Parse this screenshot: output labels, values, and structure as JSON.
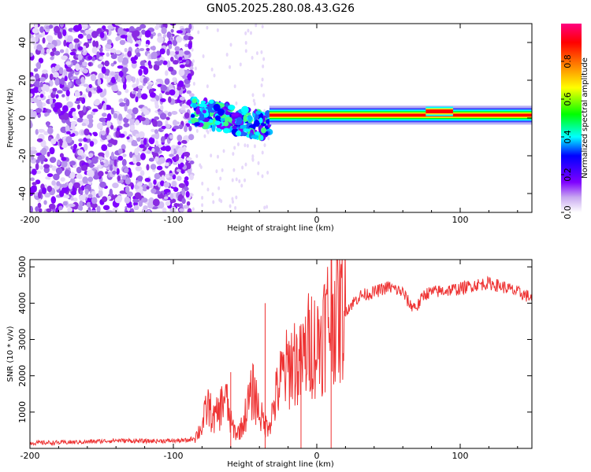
{
  "title": "GN05.2025.280.08.43.G26",
  "colors": {
    "snr_line": "#ee3333",
    "axis": "#000000",
    "background": "#ffffff"
  },
  "chart_data": [
    {
      "type": "heatmap",
      "name": "spectrogram",
      "xlabel": "Height of straight line (km)",
      "ylabel": "Frequency (Hz)",
      "xlim": [
        -200,
        150
      ],
      "ylim": [
        -50,
        50
      ],
      "xticks": [
        -200,
        -100,
        0,
        100
      ],
      "xtick_labels": [
        "-200",
        "-100",
        "0",
        "100"
      ],
      "yticks": [
        -40,
        -20,
        0,
        20,
        40
      ],
      "ytick_labels": [
        "-40",
        "-20",
        "0",
        "20",
        "40"
      ],
      "colorbar": {
        "label": "Normalized spectral amplitude",
        "range": [
          0,
          1
        ],
        "ticks": [
          0.0,
          0.2,
          0.4,
          0.6,
          0.8
        ],
        "tick_labels": [
          "0.0",
          "0.2",
          "0.4",
          "0.6",
          "0.8"
        ],
        "stops": [
          "#ffffff",
          "#c8a8f0",
          "#7f00ff",
          "#0000ff",
          "#00ffff",
          "#00ff00",
          "#ffff00",
          "#ff8000",
          "#ff0000",
          "#ff0080"
        ]
      },
      "features": [
        {
          "desc": "scattered noise",
          "x_range": [
            -200,
            -87
          ],
          "freq_range": [
            -50,
            50
          ],
          "amplitude": 0.1
        },
        {
          "desc": "transition band",
          "x_range": [
            -87,
            -33
          ],
          "freq_center": [
            4,
            -5
          ],
          "amplitude": 0.35
        },
        {
          "desc": "stable carrier line",
          "x_range": [
            -33,
            150
          ],
          "freq": 1.5,
          "amplitude": 0.95
        }
      ]
    },
    {
      "type": "line",
      "name": "snr",
      "xlabel": "Height of straight line (km)",
      "ylabel": "SNR (10 * v/v)",
      "xlim": [
        -200,
        150
      ],
      "ylim": [
        0,
        5200
      ],
      "xticks": [
        -200,
        -100,
        0,
        100
      ],
      "xtick_labels": [
        "-200",
        "-100",
        "0",
        "100"
      ],
      "yticks": [
        1000,
        2000,
        3000,
        4000,
        5000
      ],
      "ytick_labels": [
        "1000",
        "2000",
        "3000",
        "4000",
        "5000"
      ],
      "series": [
        {
          "name": "SNR",
          "x": [
            -200,
            -180,
            -160,
            -140,
            -120,
            -100,
            -90,
            -85,
            -80,
            -76,
            -72,
            -68,
            -64,
            -60,
            -56,
            -52,
            -48,
            -44,
            -40,
            -36,
            -32,
            -28,
            -24,
            -20,
            -16,
            -12,
            -8,
            -4,
            0,
            4,
            8,
            12,
            16,
            20,
            30,
            40,
            50,
            60,
            65,
            70,
            75,
            80,
            90,
            100,
            110,
            120,
            130,
            140,
            150
          ],
          "y": [
            150,
            160,
            180,
            220,
            200,
            210,
            220,
            300,
            600,
            1200,
            800,
            1000,
            1500,
            700,
            400,
            600,
            1200,
            1600,
            1000,
            600,
            800,
            1500,
            2000,
            2200,
            2500,
            2200,
            2600,
            3000,
            2800,
            3200,
            3600,
            3900,
            3700,
            3800,
            4200,
            4300,
            4450,
            4300,
            3950,
            3900,
            4250,
            4300,
            4350,
            4400,
            4500,
            4550,
            4450,
            4300,
            4150
          ]
        }
      ],
      "annotations": [
        {
          "desc": "spikes",
          "x": [
            -60,
            -36,
            -11,
            10
          ],
          "y": [
            2100,
            4000,
            3000,
            5200
          ]
        }
      ]
    }
  ]
}
